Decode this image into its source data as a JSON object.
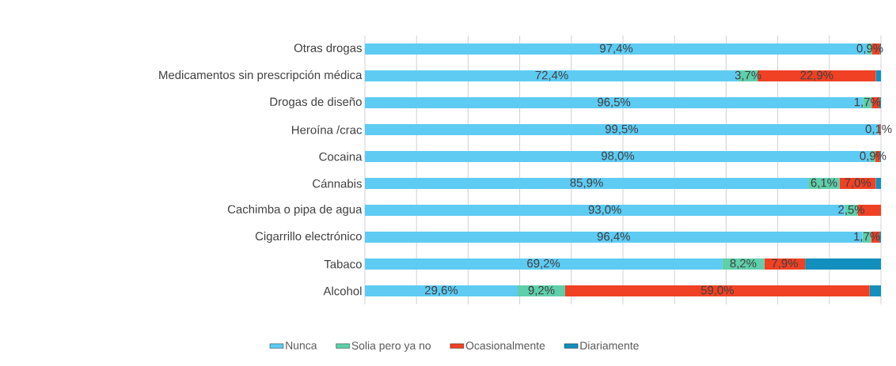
{
  "chart_data": {
    "type": "bar",
    "orientation": "horizontal",
    "stacked": true,
    "categories": [
      "Otras drogas",
      "Medicamentos sin prescripción médica",
      "Drogas de diseño",
      "Heroína /crac",
      "Cocaina",
      "Cánnabis",
      "Cachimba o pipa de agua",
      "Cigarrillo electrónico",
      "Tabaco",
      "Alcohol"
    ],
    "series": [
      {
        "name": "Nunca",
        "color": "#5ecbf3",
        "values": [
          97.4,
          72.4,
          96.5,
          99.5,
          98.0,
          85.9,
          93.0,
          96.4,
          69.2,
          29.6
        ],
        "value_labels": [
          "97,4%",
          "72,4%",
          "96,5%",
          "99,5%",
          "98,0%",
          "85,9%",
          "93,0%",
          "96,4%",
          "69,2%",
          "29,6%"
        ]
      },
      {
        "name": "Solia pero ya no",
        "color": "#5ecfaa",
        "values": [
          0.9,
          3.7,
          1.7,
          0.1,
          0.9,
          6.1,
          2.5,
          1.7,
          8.2,
          9.2
        ],
        "value_labels": [
          "0,9%",
          "3,7%",
          "1,7%",
          "0,1%",
          "0,9%",
          "6,1%",
          "2,5%",
          "1,7%",
          "8,2%",
          "9,2%"
        ]
      },
      {
        "name": "Ocasionalmente",
        "color": "#f04124",
        "values": [
          1.5,
          22.9,
          1.5,
          0.3,
          0.9,
          7.0,
          4.5,
          1.6,
          7.9,
          59.0
        ],
        "value_labels": [
          null,
          "22,9%",
          null,
          null,
          null,
          "7,0%",
          null,
          null,
          "7,9%",
          "59,0%"
        ]
      },
      {
        "name": "Diariamente",
        "color": "#128fbd",
        "values": [
          0.2,
          1.0,
          0.3,
          0.1,
          0.2,
          1.0,
          0.0,
          0.3,
          14.7,
          2.2
        ],
        "value_labels": [
          null,
          null,
          null,
          null,
          null,
          null,
          null,
          null,
          null,
          null
        ]
      }
    ],
    "xlim": [
      0,
      100
    ],
    "xticks": [
      {
        "value": 0,
        "label": null
      },
      {
        "value": 10,
        "label": null
      },
      {
        "value": 20,
        "label": null
      },
      {
        "value": 30,
        "label": null
      },
      {
        "value": 40,
        "label": null
      },
      {
        "value": 50,
        "label": null
      },
      {
        "value": 60,
        "label": null
      },
      {
        "value": 70,
        "label": null
      },
      {
        "value": 80,
        "label": null
      },
      {
        "value": 90,
        "label": null
      },
      {
        "value": 100,
        "label": null
      }
    ],
    "tick_labels": "y",
    "grid": "x",
    "legend": "bottom"
  }
}
